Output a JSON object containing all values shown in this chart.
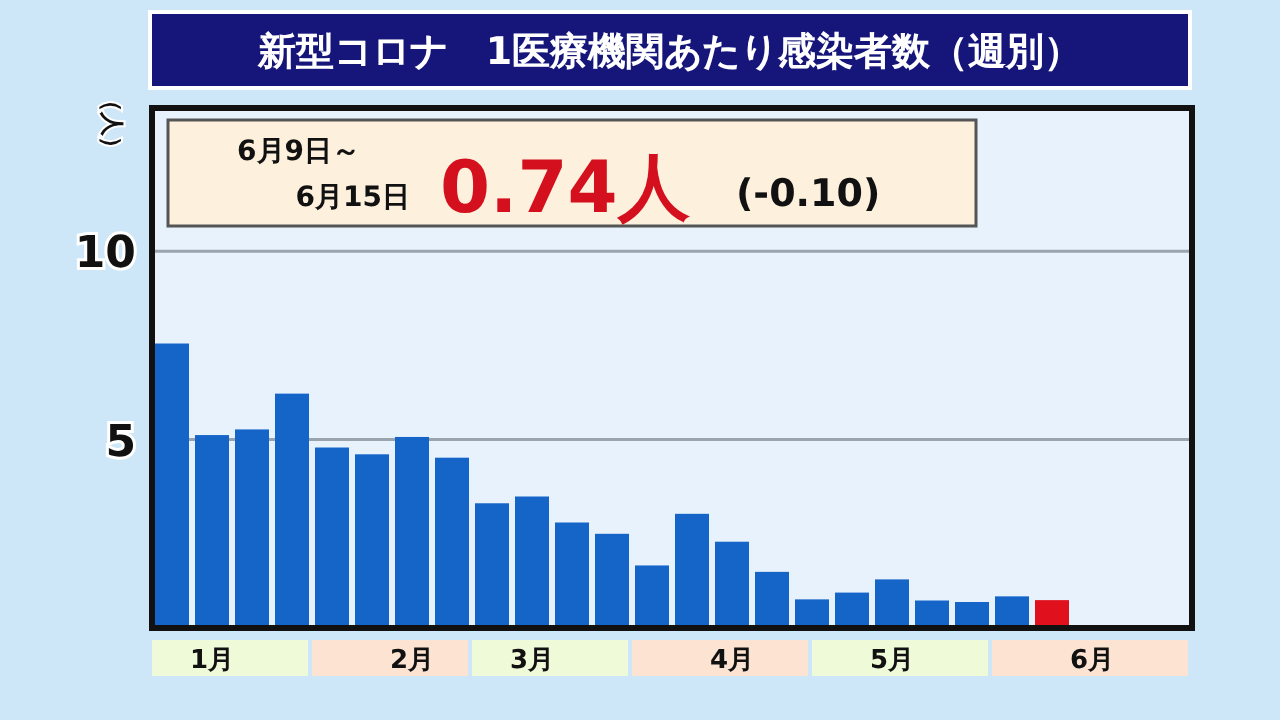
{
  "chart_data": {
    "type": "bar",
    "title": "新型コロナ　1医療機関あたり感染者数（週別）",
    "ylabel": "（人）",
    "categories": [
      null,
      "1月",
      null,
      null,
      null,
      null,
      "2月",
      null,
      null,
      "3月",
      null,
      null,
      null,
      null,
      "4月",
      null,
      null,
      null,
      "5月",
      null,
      null,
      null,
      null,
      "6月",
      null,
      null
    ],
    "values": [
      7.55,
      5.12,
      5.27,
      6.22,
      4.79,
      4.61,
      5.07,
      4.52,
      3.31,
      3.49,
      2.8,
      2.5,
      1.66,
      3.03,
      2.29,
      1.49,
      0.76,
      0.94,
      1.29,
      0.73,
      0.69,
      0.84,
      0.74,
      null,
      null,
      null
    ],
    "colors": [
      "#1565c8",
      "#1565c8",
      "#1565c8",
      "#1565c8",
      "#1565c8",
      "#1565c8",
      "#1565c8",
      "#1565c8",
      "#1565c8",
      "#1565c8",
      "#1565c8",
      "#1565c8",
      "#1565c8",
      "#1565c8",
      "#1565c8",
      "#1565c8",
      "#1565c8",
      "#1565c8",
      "#1565c8",
      "#1565c8",
      "#1565c8",
      "#1565c8",
      "#e0101c",
      null,
      null,
      null
    ],
    "ylim": [
      0,
      13.8
    ],
    "yticks": [
      5,
      10
    ],
    "grid": "y",
    "annotations": [
      "6月9日～",
      "6月15日",
      "0.74人",
      "(-0.10)"
    ]
  }
}
